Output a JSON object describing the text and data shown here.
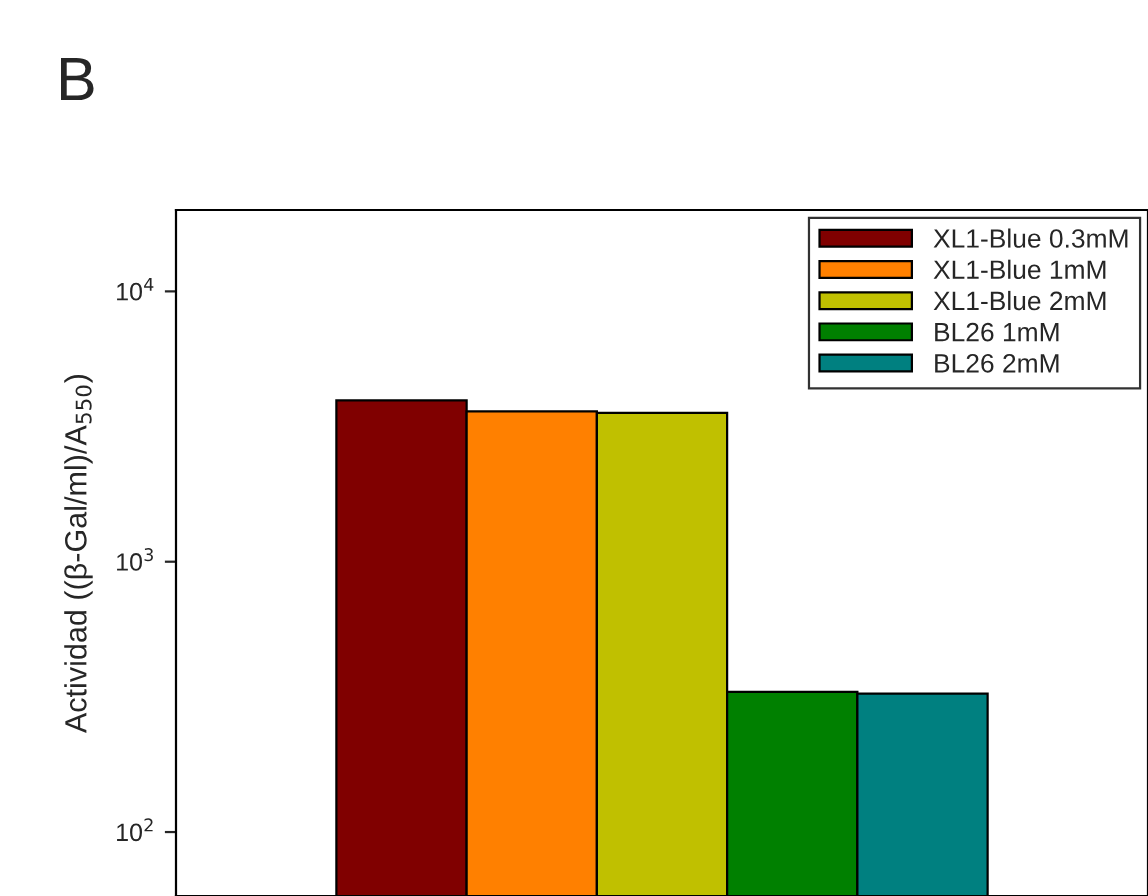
{
  "chart_data": {
    "type": "bar",
    "categories": [
      null
    ],
    "ylabel": "Actividad ((β-Gal/ml)/A$_{550}$)",
    "annotations": [
      "B"
    ],
    "log": true,
    "ylim": [
      58,
      20000
    ],
    "yticks": [
      {
        "value": 100,
        "label": "10$^{2}$"
      },
      {
        "value": 1000,
        "label": "10$^{3}$"
      },
      {
        "value": 10000,
        "label": "10$^{4}$"
      }
    ],
    "legend": "top right",
    "grid": false,
    "series": [
      {
        "name": "XL1-Blue 0.3mM",
        "color": "#800000",
        "values": [
          3950
        ]
      },
      {
        "name": "XL1-Blue 1mM",
        "color": "#ff8000",
        "values": [
          3600
        ]
      },
      {
        "name": "XL1-Blue 2mM",
        "color": "#c0c000",
        "values": [
          3550
        ]
      },
      {
        "name": "BL26 1mM",
        "color": "#008000",
        "values": [
          330
        ]
      },
      {
        "name": "BL26 2mM",
        "color": "#008080",
        "values": [
          325
        ]
      }
    ]
  }
}
